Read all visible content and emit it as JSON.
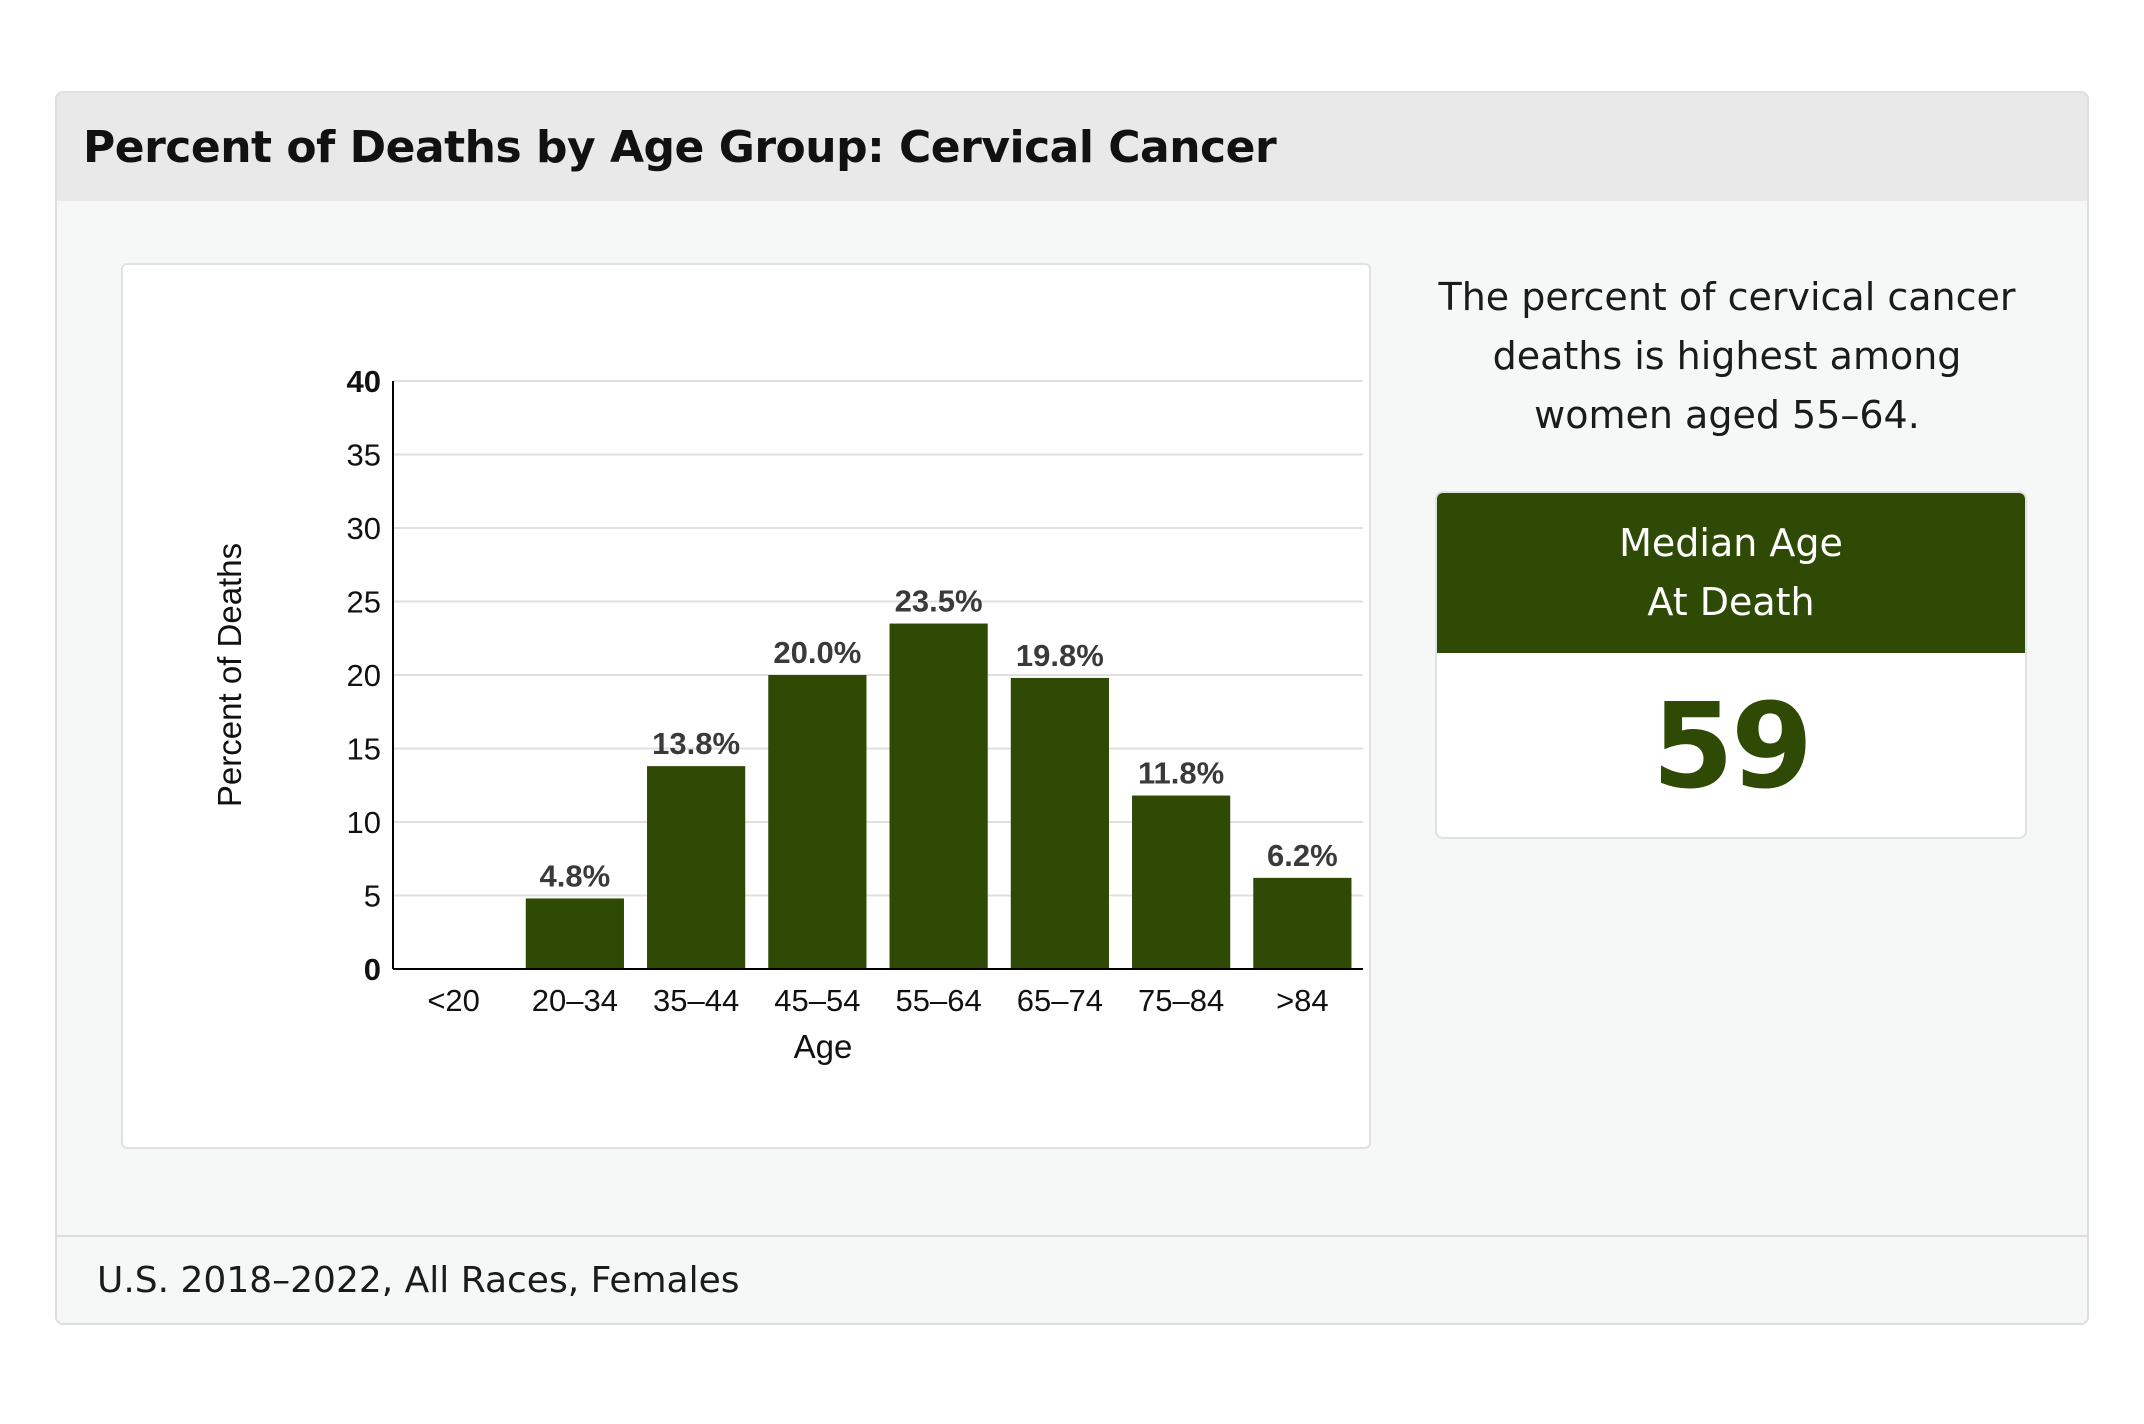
{
  "header": {
    "title": "Percent of Deaths by Age Group: Cervical Cancer"
  },
  "summary": {
    "text": "The percent of cervical cancer deaths is highest among women aged 55–64."
  },
  "median": {
    "label_line1": "Median Age",
    "label_line2": "At Death",
    "value": "59"
  },
  "footer": {
    "text": "U.S. 2018–2022, All Races, Females"
  },
  "colors": {
    "bar": "#2f4a05",
    "accent": "#2f4a05",
    "gridline": "#e0e0e0"
  },
  "chart_data": {
    "type": "bar",
    "categories": [
      "<20",
      "20–34",
      "35–44",
      "45–54",
      "55–64",
      "65–74",
      "75–84",
      ">84"
    ],
    "values": [
      null,
      4.8,
      13.8,
      20.0,
      23.5,
      19.8,
      11.8,
      6.2
    ],
    "data_labels": [
      "",
      "4.8%",
      "13.8%",
      "20.0%",
      "23.5%",
      "19.8%",
      "11.8%",
      "6.2%"
    ],
    "xlabel": "Age",
    "ylabel": "Percent of Deaths",
    "ylim": [
      0,
      40
    ],
    "yticks": [
      "0",
      "5",
      "10",
      "15",
      "20",
      "25",
      "30",
      "35",
      "40"
    ],
    "grid": true
  }
}
